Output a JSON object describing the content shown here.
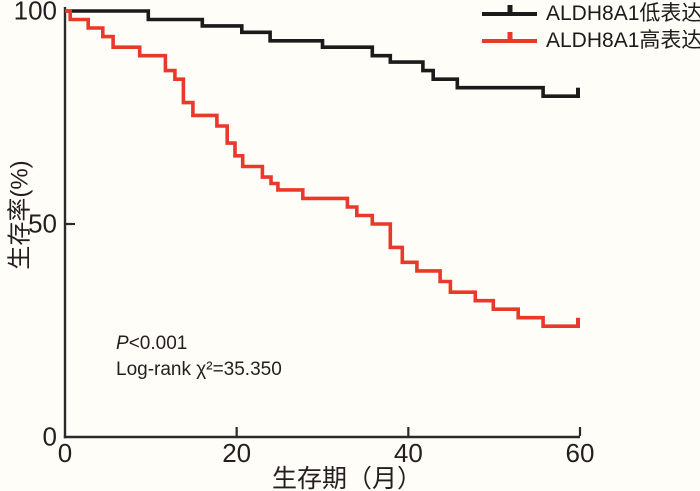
{
  "figure": {
    "background": "#fffdf7",
    "axis_color": "#2a2a2a",
    "text_color": "#231f20"
  },
  "chart_data": {
    "type": "line",
    "subtype": "kaplan_meier_step",
    "title": "",
    "xlabel": "生存期（月）",
    "ylabel": "生存率(%)",
    "xlim": [
      0,
      60
    ],
    "ylim": [
      0,
      100
    ],
    "xticks": [
      0,
      20,
      40,
      60
    ],
    "yticks": [
      0,
      50,
      100
    ],
    "grid": false,
    "legend_position": "top-right",
    "annotations": {
      "p_symbol": "P",
      "p_rest": "<0.001",
      "logrank": "Log-rank χ²=35.350"
    },
    "series": [
      {
        "id": "low",
        "name": "ALDH8A1低表达",
        "color": "#1b1b1b",
        "start": 100,
        "start_t": 0,
        "end_t": 60,
        "censored_at_end": true,
        "steps": [
          [
            9.7,
            98
          ],
          [
            16.0,
            96.5
          ],
          [
            20.6,
            95
          ],
          [
            23.9,
            93
          ],
          [
            30.0,
            91.5
          ],
          [
            35.8,
            89.5
          ],
          [
            37.9,
            88
          ],
          [
            41.7,
            86
          ],
          [
            42.9,
            84
          ],
          [
            45.7,
            82
          ],
          [
            55.7,
            80
          ]
        ]
      },
      {
        "id": "high",
        "name": "ALDH8A1高表达",
        "color": "#e8392b",
        "start": 100,
        "start_t": 0,
        "end_t": 60,
        "censored_at_end": true,
        "steps": [
          [
            0.6,
            98
          ],
          [
            2.7,
            96
          ],
          [
            4.4,
            94
          ],
          [
            5.6,
            91.5
          ],
          [
            8.7,
            89.5
          ],
          [
            11.7,
            86
          ],
          [
            12.8,
            84
          ],
          [
            13.8,
            78.5
          ],
          [
            14.9,
            75.5
          ],
          [
            17.7,
            73
          ],
          [
            18.9,
            69
          ],
          [
            19.8,
            66
          ],
          [
            20.7,
            63.5
          ],
          [
            23.0,
            61
          ],
          [
            24.0,
            59.5
          ],
          [
            24.8,
            58
          ],
          [
            27.7,
            56
          ],
          [
            32.9,
            54
          ],
          [
            34.0,
            52
          ],
          [
            35.8,
            50
          ],
          [
            37.9,
            44.5
          ],
          [
            39.3,
            41
          ],
          [
            41.0,
            39
          ],
          [
            43.7,
            36.5
          ],
          [
            44.9,
            34
          ],
          [
            47.8,
            32
          ],
          [
            49.9,
            30
          ],
          [
            52.8,
            28
          ],
          [
            55.7,
            26
          ]
        ]
      }
    ]
  }
}
